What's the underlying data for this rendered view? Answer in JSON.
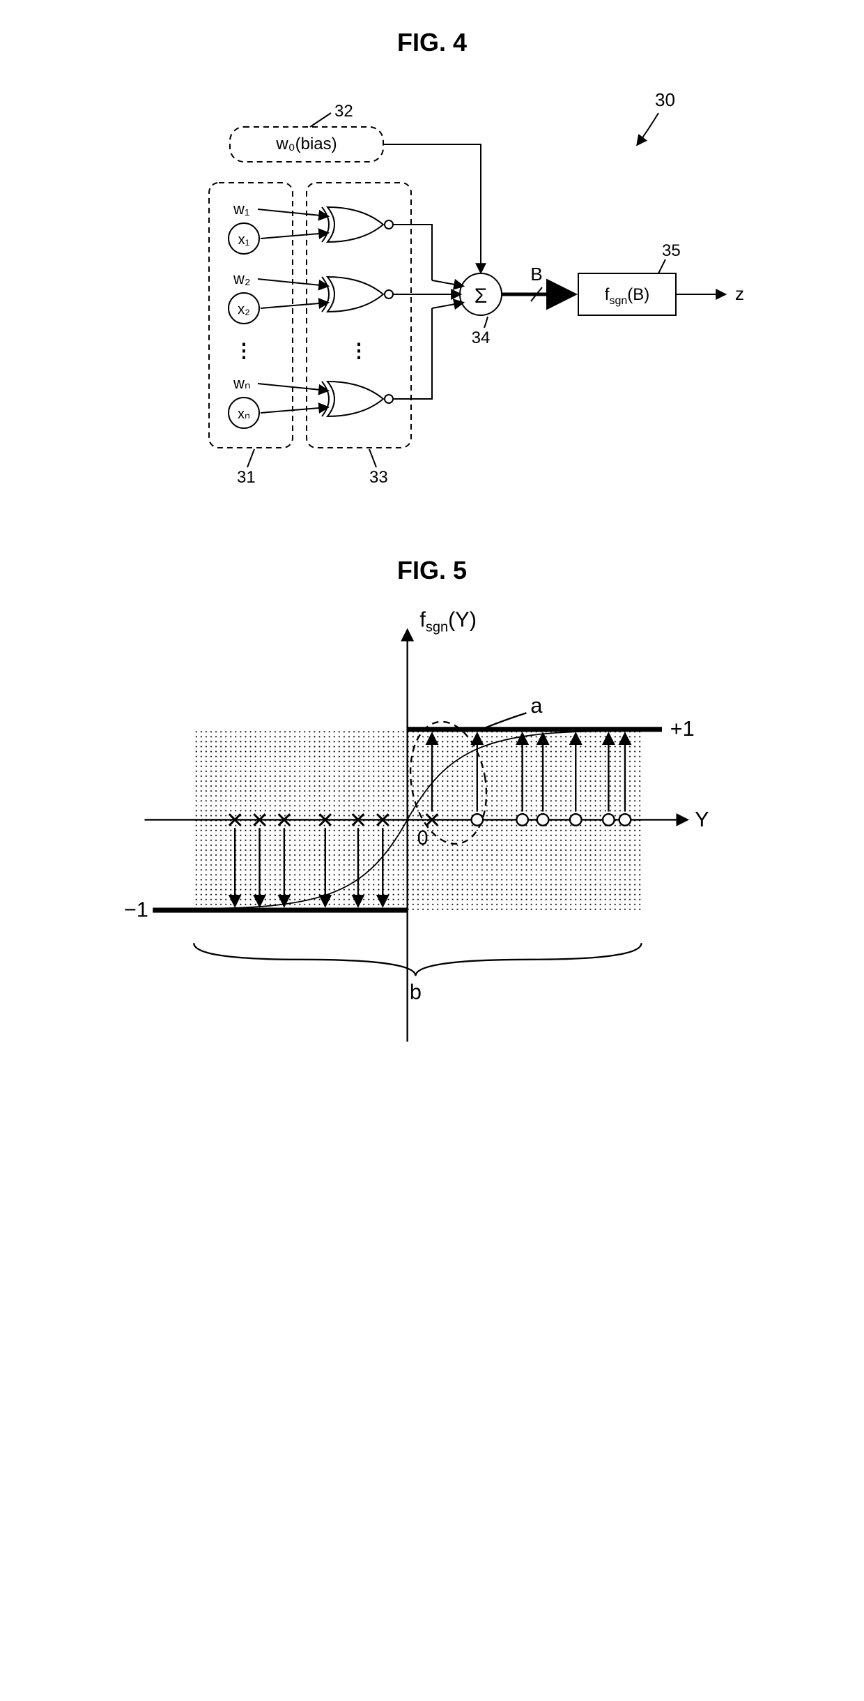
{
  "fig4": {
    "title": "FIG. 4",
    "labels": {
      "block_ref": "30",
      "bias_box_ref": "32",
      "bias_text": "w₀(bias)",
      "inputs_ref": "31",
      "gates_ref": "33",
      "sum_ref": "34",
      "sum_symbol": "Σ",
      "fsgn_ref": "35",
      "fsgn_text": "f",
      "fsgn_sub": "sgn",
      "fsgn_arg": "(B)",
      "B_label": "B",
      "z_label": "z",
      "w1": "w₁",
      "x1": "x₁",
      "w2": "w₂",
      "x2": "x₂",
      "wn": "wₙ",
      "xn": "xₙ",
      "dots": "⋮"
    },
    "style": {
      "stroke": "#000000",
      "stroke_width": 2,
      "dash": "8,6",
      "font_size_label": 22,
      "font_size_ref": 22,
      "font_size_title": 36
    }
  },
  "fig5": {
    "title": "FIG. 5",
    "labels": {
      "y_axis": "f",
      "y_axis_sub": "sgn",
      "y_axis_arg": "(Y)",
      "x_axis": "Y",
      "plus1": "+1",
      "minus1": "−1",
      "zero": "0",
      "a": "a",
      "b": "b"
    },
    "style": {
      "stroke": "#000000",
      "stroke_width": 2,
      "thick_width": 5,
      "shading_fill": "#d8d8d8",
      "shading_opacity": 0.7,
      "font_size": 24
    },
    "data": {
      "x_markers_left": [
        -210,
        -180,
        -150,
        -100,
        -60,
        -30
      ],
      "x_markers_right_x": [
        30
      ],
      "o_markers": [
        85,
        140,
        165,
        205,
        245,
        265
      ],
      "arrows_up_right": [
        30,
        85,
        140,
        165,
        205,
        245,
        265
      ],
      "arrows_down_left": [
        -210,
        -180,
        -150,
        -100,
        -60,
        -30
      ],
      "level_plus1_y": -110,
      "level_minus1_y": 110,
      "xlim": [
        -300,
        300
      ],
      "ylim": [
        -220,
        220
      ]
    }
  }
}
